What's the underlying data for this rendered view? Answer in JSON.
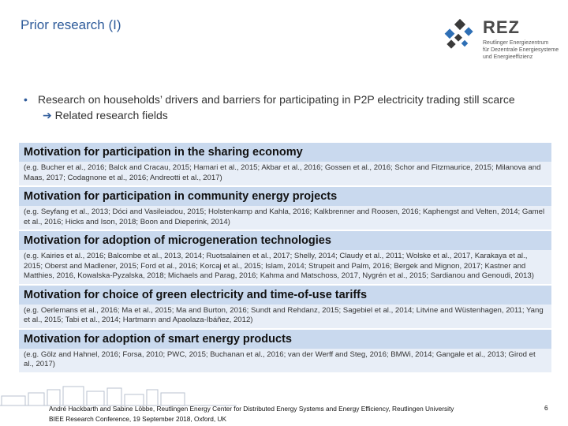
{
  "title": "Prior research (I)",
  "logo": {
    "name": "REZ",
    "sub_line1": "Reutlinger Energiezentrum",
    "sub_line2": "für Dezentrale Energiesysteme",
    "sub_line3": "und Energieeffizienz",
    "colors": {
      "mark_dark": "#3a3a3a",
      "mark_blue": "#2e6fb5"
    }
  },
  "bullet": {
    "text": "Research on households’ drivers and barriers for participating in P2P electricity trading still scarce",
    "arrow_text": "Related research fields"
  },
  "sections": [
    {
      "heading": "Motivation for participation in the sharing economy",
      "refs": "(e.g. Bucher et al., 2016; Balck and Cracau, 2015; Hamari et al., 2015; Akbar et al., 2016; Gossen et al., 2016; Schor and Fitzmaurice, 2015; Milanova and Maas, 2017; Codagnone et al., 2016; Andreotti et al., 2017)"
    },
    {
      "heading": "Motivation for participation in community energy projects",
      "refs": "(e.g. Seyfang et al., 2013; Dóci and Vasileiadou, 2015; Holstenkamp and Kahla, 2016; Kalkbrenner and Roosen, 2016; Kaphengst and Velten, 2014; Gamel et al., 2016; Hicks and Ison, 2018; Boon and Dieperink, 2014)"
    },
    {
      "heading": "Motivation for adoption of microgeneration technologies",
      "refs": "(e.g. Kairies et al., 2016; Balcombe et al., 2013, 2014; Ruotsalainen et al., 2017; Shelly, 2014; Claudy et al., 2011; Wolske et al., 2017, Karakaya et al., 2015; Oberst and Madlener, 2015; Ford et al., 2016; Korcaj et al., 2015; Islam, 2014; Strupeit and Palm, 2016; Bergek and Mignon, 2017; Kastner and Matthies, 2016, Kowalska-Pyzalska, 2018; Michaels and Parag, 2016; Kahma and Matschoss, 2017, Nygrén et al., 2015; Sardianou and Genoudi, 2013)"
    },
    {
      "heading": "Motivation for choice of green electricity and time-of-use tariffs",
      "refs": "(e.g. Oerlemans et al., 2016; Ma et al., 2015; Ma and Burton, 2016; Sundt and Rehdanz, 2015; Sagebiel et al., 2014; Litvine and Wüstenhagen, 2011; Yang et al., 2015; Tabi et al., 2014; Hartmann and Apaolaza-Ibáñez, 2012)"
    },
    {
      "heading": "Motivation for adoption of smart energy products",
      "refs": "(e.g. Gölz and Hahnel, 2016; Forsa, 2010; PWC, 2015; Buchanan et al., 2016; van der Werff and Steg, 2016; BMWi, 2014; Gangale et al., 2013; Girod et al., 2017)"
    }
  ],
  "footer": {
    "line1": "André Hackbarth and Sabine Löbbe, Reutlingen Energy Center for Distributed Energy Systems and Energy Efficiency, Reutlingen University",
    "line2": "BIEE Research Conference, 19 September 2018, Oxford, UK",
    "page": "6"
  }
}
